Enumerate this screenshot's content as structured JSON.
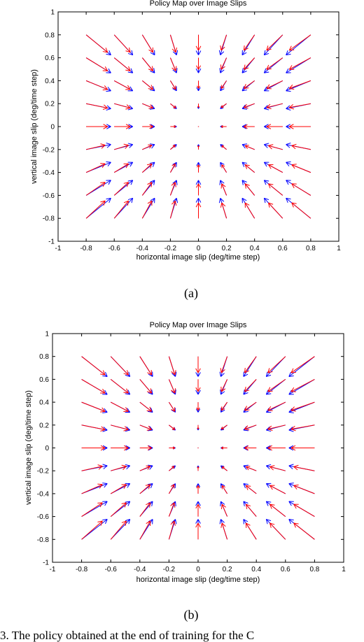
{
  "chart_data": [
    {
      "type": "quiver",
      "title": "Policy Map over Image Slips",
      "xlabel": "horizontal image slip (deg/time step)",
      "ylabel": "vertical image slip (deg/time step)",
      "xlim": [
        -1,
        1
      ],
      "ylim": [
        -1,
        1
      ],
      "xticks": [
        "-1",
        "-0.8",
        "-0.6",
        "-0.4",
        "-0.2",
        "0",
        "0.2",
        "0.4",
        "0.6",
        "0.8",
        "1"
      ],
      "yticks": [
        "-1",
        "-0.8",
        "-0.6",
        "-0.4",
        "-0.2",
        "0",
        "0.2",
        "0.4",
        "0.6",
        "0.8",
        "1"
      ],
      "grid": [
        -0.8,
        -0.6,
        -0.4,
        -0.2,
        0,
        0.2,
        0.4,
        0.6,
        0.8
      ],
      "series": [
        {
          "color": "#0000ff",
          "scale": 0.22
        },
        {
          "color": "#ff0000",
          "scale": 0.18
        }
      ],
      "sublabel": "(a)"
    },
    {
      "type": "quiver",
      "title": "Policy Map over Image Slips",
      "xlabel": "horizontal image slip (deg/time step)",
      "ylabel": "vertical image slip (deg/time step)",
      "xlim": [
        -1,
        1
      ],
      "ylim": [
        -1,
        1
      ],
      "xticks": [
        "-1",
        "-0.8",
        "-0.6",
        "-0.4",
        "-0.2",
        "0",
        "0.2",
        "0.4",
        "0.6",
        "0.8",
        "1"
      ],
      "yticks": [
        "-1",
        "-0.8",
        "-0.6",
        "-0.4",
        "-0.2",
        "0",
        "0.2",
        "0.4",
        "0.6",
        "0.8",
        "1"
      ],
      "grid": [
        -0.8,
        -0.6,
        -0.4,
        -0.2,
        0,
        0.2,
        0.4,
        0.6,
        0.8
      ],
      "series": [
        {
          "color": "#0000ff",
          "scale": 0.22
        },
        {
          "color": "#ff0000",
          "scale": 0.19
        }
      ],
      "sublabel": "(b)"
    }
  ],
  "caption": "3. The policy obtained at the end of training for the C"
}
